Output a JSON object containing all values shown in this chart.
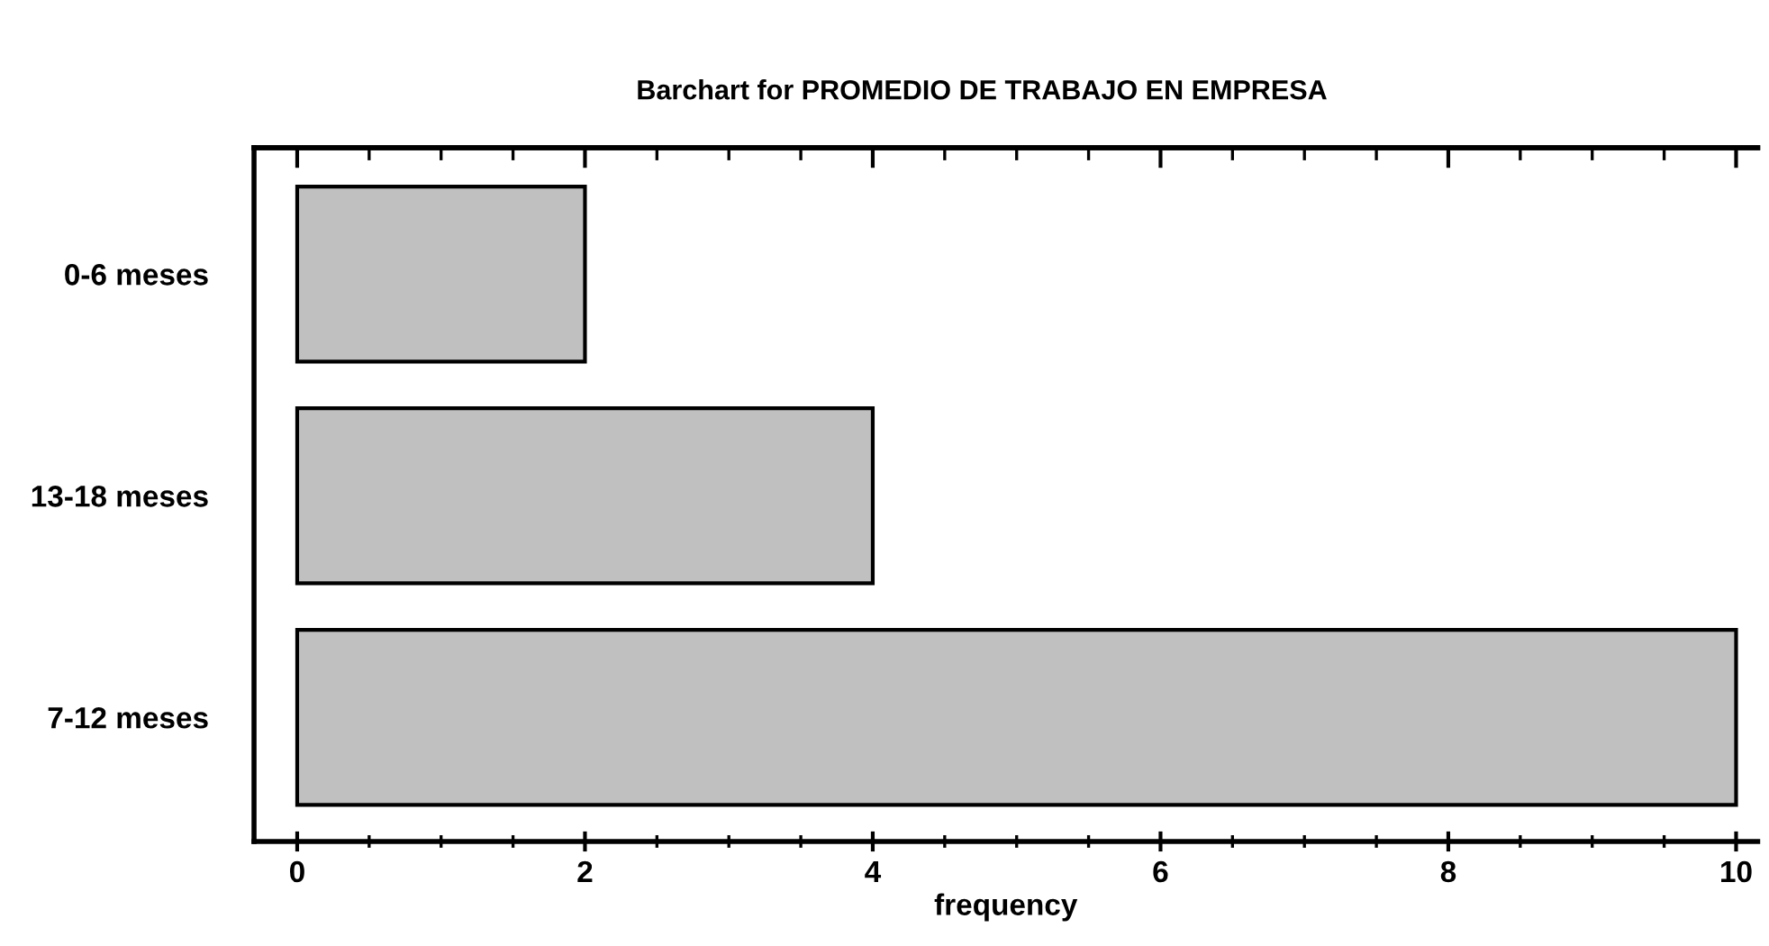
{
  "chart_data": {
    "type": "bar",
    "orientation": "horizontal",
    "title": "Barchart for PROMEDIO DE TRABAJO EN EMPRESA",
    "xlabel": "frequency",
    "categories": [
      "0-6 meses",
      "13-18 meses",
      "7-12 meses"
    ],
    "values": [
      2,
      4,
      10
    ],
    "color": "#c0c0c0",
    "xlim": [
      -0.3,
      10.15
    ],
    "xticks": [
      0,
      2,
      4,
      6,
      8,
      10
    ],
    "grid": false,
    "legend": false
  }
}
